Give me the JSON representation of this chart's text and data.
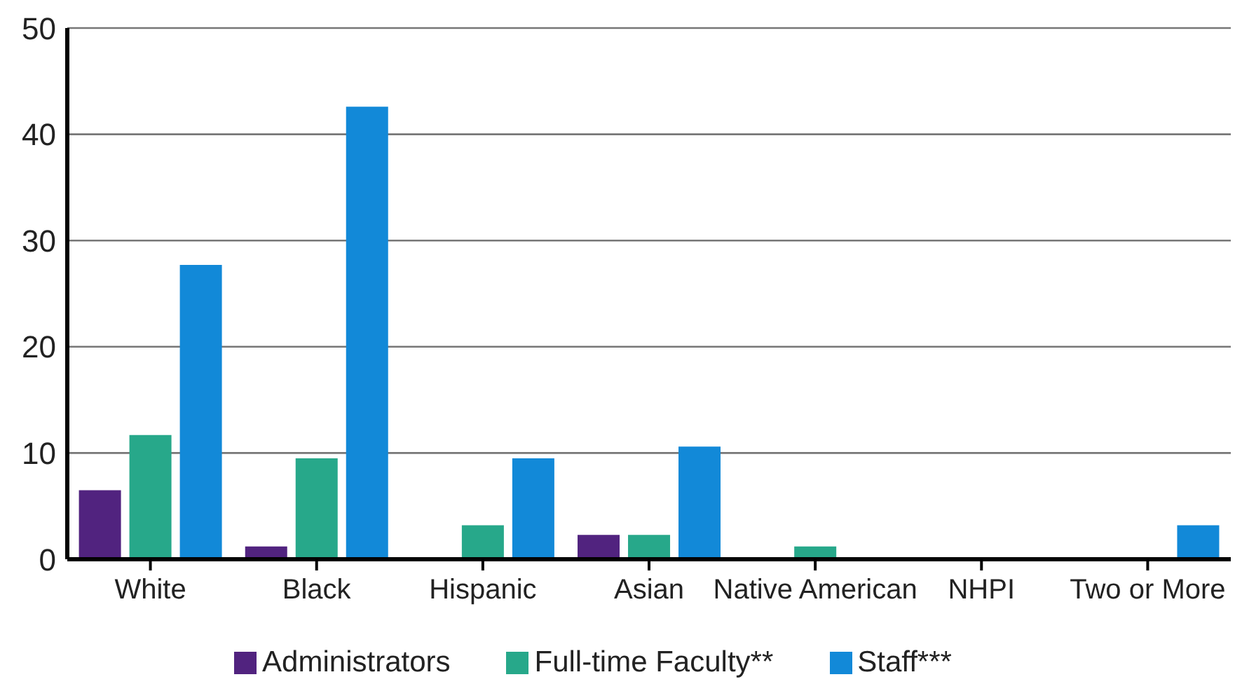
{
  "chart_data": {
    "type": "bar",
    "categories": [
      "White",
      "Black",
      "Hispanic",
      "Asian",
      "Native American",
      "NHPI",
      "Two or More"
    ],
    "series": [
      {
        "name": "Administrators",
        "color": "#51237f",
        "values": [
          6.5,
          1.2,
          0,
          2.3,
          0,
          0,
          0
        ]
      },
      {
        "name": "Full-time Faculty**",
        "color": "#27a88a",
        "values": [
          11.7,
          9.5,
          3.2,
          2.3,
          1.2,
          0,
          0
        ]
      },
      {
        "name": "Staff***",
        "color": "#1289d8",
        "values": [
          27.7,
          42.6,
          9.5,
          10.6,
          0,
          0,
          3.2
        ]
      }
    ],
    "ylim": [
      0,
      50
    ],
    "yticks": [
      0,
      10,
      20,
      30,
      40,
      50
    ],
    "grid": "y",
    "legend": "bottom"
  }
}
